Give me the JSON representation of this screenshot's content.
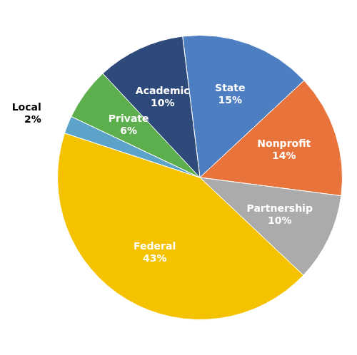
{
  "chart_data": {
    "type": "pie",
    "categories": [
      "State",
      "Nonprofit",
      "Partnership",
      "Federal",
      "Local",
      "Private",
      "Academic"
    ],
    "values": [
      15,
      14,
      10,
      43,
      2,
      6,
      10
    ],
    "value_labels": [
      "15%",
      "14%",
      "10%",
      "43%",
      "2%",
      "6%",
      "10%"
    ],
    "colors": [
      "#4E7EC2",
      "#E8743B",
      "#ABABAB",
      "#F5C200",
      "#5BA3C9",
      "#5DAF4E",
      "#2E4A7A"
    ],
    "data_labels": true
  }
}
